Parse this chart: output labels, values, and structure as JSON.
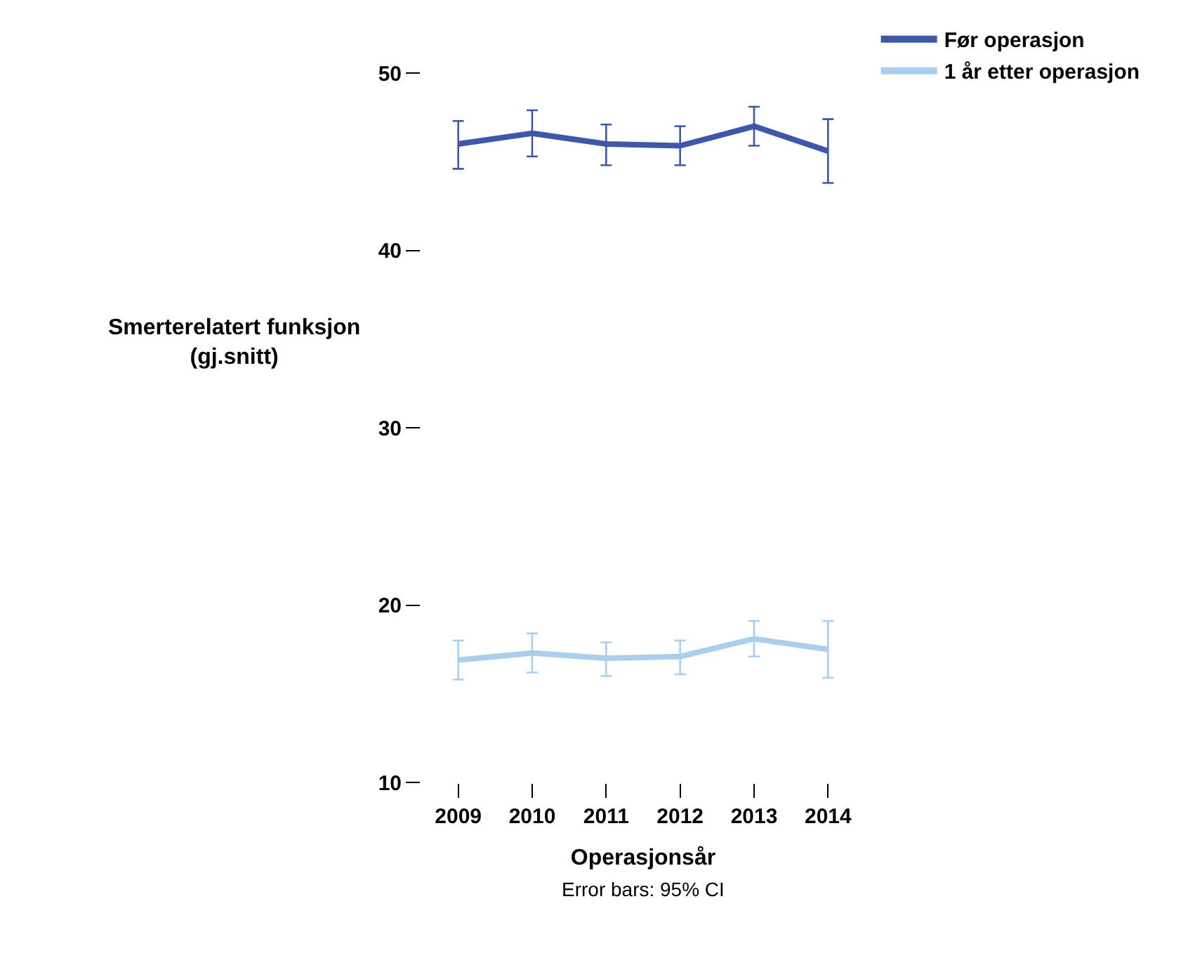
{
  "chart_data": {
    "type": "line",
    "xlabel": "Operasjonsår",
    "ylabel": "Smerterelatert funksjon\n(gj.snitt)",
    "categories": [
      "2009",
      "2010",
      "2011",
      "2012",
      "2013",
      "2014"
    ],
    "series": [
      {
        "name": "Før operasjon",
        "color": "#3f57a8",
        "values": [
          46.0,
          46.6,
          46.0,
          45.9,
          47.0,
          45.6
        ],
        "errors": [
          [
            44.6,
            47.3
          ],
          [
            45.3,
            47.9
          ],
          [
            44.8,
            47.1
          ],
          [
            44.8,
            47.0
          ],
          [
            45.9,
            48.1
          ],
          [
            43.8,
            47.4
          ]
        ]
      },
      {
        "name": "1 år etter operasjon",
        "color": "#aacfee",
        "values": [
          16.9,
          17.3,
          17.0,
          17.1,
          18.1,
          17.5
        ],
        "errors": [
          [
            15.8,
            18.0
          ],
          [
            16.2,
            18.4
          ],
          [
            16.0,
            17.9
          ],
          [
            16.1,
            18.0
          ],
          [
            17.1,
            19.1
          ],
          [
            15.9,
            19.1
          ]
        ]
      }
    ],
    "ylim": [
      10,
      50
    ],
    "yticks": [
      10,
      20,
      30,
      40,
      50
    ],
    "legend": "top right",
    "marker": "none",
    "line_style": "solid",
    "annotations": [
      "Error bars: 95% CI"
    ]
  }
}
